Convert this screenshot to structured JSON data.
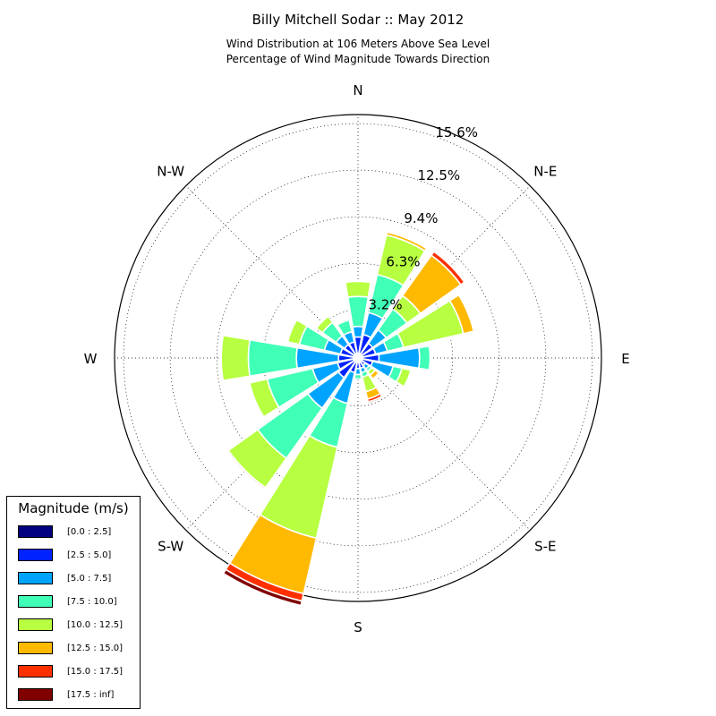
{
  "title": "Billy Mitchell Sodar :: May 2012",
  "subtitle_1": "Wind Distribution at 106 Meters Above Sea Level",
  "subtitle_2": "Percentage of Wind Magnitude Towards Direction",
  "chart_data": {
    "type": "windrose",
    "directions": [
      "N",
      "NNE",
      "NE",
      "ENE",
      "E",
      "ESE",
      "SE",
      "SSE",
      "S",
      "SSW",
      "SW",
      "WSW",
      "W",
      "WNW",
      "NW",
      "NNW"
    ],
    "compass_labels": [
      "N",
      "N-E",
      "E",
      "S-E",
      "S",
      "S-W",
      "W",
      "N-W"
    ],
    "radial_ticks": [
      "3.2%",
      "6.3%",
      "9.4%",
      "12.5%",
      "15.6%"
    ],
    "radial_tick_values": [
      3.2,
      6.3,
      9.4,
      12.5,
      15.6
    ],
    "rmax": 16.2,
    "unit": "%",
    "bins": [
      "[0.0 : 2.5]",
      "[2.5 : 5.0]",
      "[5.0 : 7.5]",
      "[7.5 : 10.0]",
      "[10.0 : 12.5]",
      "[12.5 : 15.0]",
      "[15.0 : 17.5]",
      "[17.5 : inf]"
    ],
    "colors": [
      "#000080",
      "#0022ff",
      "#00a4ff",
      "#40ffb7",
      "#b7ff40",
      "#ffb900",
      "#ff3000",
      "#800000"
    ],
    "cumulative": [
      [
        0.3,
        1.4,
        2.1,
        4.1,
        5.1,
        5.2,
        5.2,
        5.2
      ],
      [
        0.3,
        1.6,
        3.1,
        5.7,
        8.4,
        8.6,
        8.6,
        8.6
      ],
      [
        0.3,
        1.2,
        2.3,
        4.0,
        5.1,
        8.4,
        8.7,
        8.7
      ],
      [
        0.3,
        1.2,
        2.0,
        3.1,
        7.2,
        7.9,
        7.9,
        7.9
      ],
      [
        0.3,
        1.4,
        4.1,
        4.8,
        4.8,
        4.8,
        4.8,
        4.8
      ],
      [
        0.3,
        1.0,
        2.4,
        3.0,
        3.6,
        3.6,
        3.6,
        3.6
      ],
      [
        0.3,
        0.6,
        0.9,
        1.1,
        1.4,
        1.7,
        1.7,
        1.7
      ],
      [
        0.3,
        0.7,
        1.0,
        1.3,
        2.3,
        2.8,
        3.0,
        3.1
      ],
      [
        0.3,
        0.7,
        1.1,
        1.4,
        1.4,
        1.4,
        1.4,
        1.4
      ],
      [
        0.3,
        1.0,
        3.1,
        6.1,
        12.3,
        16.1,
        16.6,
        16.9
      ],
      [
        0.3,
        1.6,
        4.1,
        8.2,
        10.6,
        10.6,
        10.7,
        10.7
      ],
      [
        0.3,
        1.4,
        3.1,
        6.2,
        7.4,
        7.4,
        7.4,
        7.4
      ],
      [
        0.3,
        1.3,
        4.1,
        7.3,
        9.1,
        9.1,
        9.1,
        9.1
      ],
      [
        0.3,
        1.2,
        2.3,
        4.0,
        4.8,
        4.8,
        4.8,
        4.8
      ],
      [
        0.3,
        1.1,
        1.8,
        2.9,
        3.4,
        3.4,
        3.4,
        3.4
      ],
      [
        0.3,
        1.1,
        1.8,
        2.6,
        2.7,
        2.7,
        2.7,
        2.7
      ]
    ]
  },
  "legend": {
    "title": "Magnitude (m/s)",
    "items": [
      "[0.0 : 2.5]",
      "[2.5 : 5.0]",
      "[5.0 : 7.5]",
      "[7.5 : 10.0]",
      "[10.0 : 12.5]",
      "[12.5 : 15.0]",
      "[15.0 : 17.5]",
      "[17.5 : inf]"
    ]
  }
}
